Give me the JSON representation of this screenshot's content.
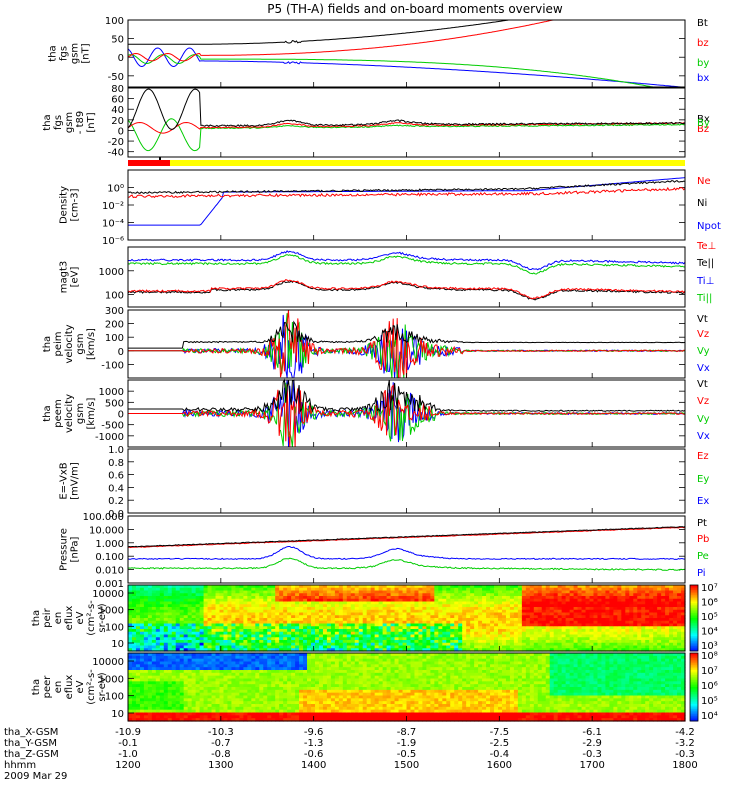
{
  "chart_data": {
    "type": "line",
    "title": "P5 (TH-A) fields and on-board moments overview",
    "panels": [
      {
        "id": "fgs",
        "ylabel": [
          "tha",
          "fgs",
          "gsm",
          "[nT]"
        ],
        "ylim": [
          -80,
          100
        ],
        "ticks": [
          "100",
          "50",
          "0",
          "-50"
        ],
        "tick_values": [
          100,
          50,
          0,
          -50
        ],
        "legend": [
          {
            "name": "Bt",
            "color": "#000000"
          },
          {
            "name": "bz",
            "color": "#ff0000"
          },
          {
            "name": "by",
            "color": "#00cc00"
          },
          {
            "name": "bx",
            "color": "#0000ff"
          }
        ]
      },
      {
        "id": "fgs-t89",
        "ylabel": [
          "tha",
          "fgs",
          "gsm",
          "- t89",
          "[nT]"
        ],
        "ylim": [
          -50,
          80
        ],
        "ticks": [
          "80",
          "60",
          "40",
          "20",
          "0",
          "-20",
          "-40"
        ],
        "tick_values": [
          80,
          60,
          40,
          20,
          0,
          -20,
          -40
        ],
        "legend": [
          {
            "name": "Bx",
            "color": "#000000"
          },
          {
            "name": "Bz",
            "color": "#ff0000"
          },
          {
            "name": "By",
            "color": "#00cc00"
          }
        ]
      },
      {
        "id": "density",
        "ylabel": [
          "Density",
          "[cm-3]"
        ],
        "ylim": [
          1e-06,
          100
        ],
        "scale": "log",
        "ticks": [
          "10⁰",
          "10⁻²",
          "10⁻⁴",
          "10⁻⁶"
        ],
        "tick_values": [
          1,
          0.01,
          0.0001,
          1e-06
        ],
        "legend": [
          {
            "name": "Ne",
            "color": "#ff0000"
          },
          {
            "name": "Ni",
            "color": "#000000"
          },
          {
            "name": "Npot",
            "color": "#0000ff"
          }
        ]
      },
      {
        "id": "temperature",
        "ylabel": [
          "magt3",
          "[eV]"
        ],
        "ylim": [
          30,
          10000
        ],
        "scale": "log",
        "ticks": [
          "1000",
          "100"
        ],
        "tick_values": [
          1000,
          100
        ],
        "legend": [
          {
            "name": "Te⊥",
            "color": "#ff0000"
          },
          {
            "name": "Te||",
            "color": "#000000"
          },
          {
            "name": "Ti⊥",
            "color": "#0000ff"
          },
          {
            "name": "Ti||",
            "color": "#00cc00"
          }
        ]
      },
      {
        "id": "peim",
        "ylabel": [
          "tha",
          "peim",
          "velocity",
          "gsm",
          "[km/s]"
        ],
        "ylim": [
          -200,
          300
        ],
        "ticks": [
          "300",
          "200",
          "100",
          "0",
          "-100"
        ],
        "tick_values": [
          300,
          200,
          100,
          0,
          -100
        ],
        "legend": [
          {
            "name": "Vt",
            "color": "#000000"
          },
          {
            "name": "Vz",
            "color": "#ff0000"
          },
          {
            "name": "Vy",
            "color": "#00cc00"
          },
          {
            "name": "Vx",
            "color": "#0000ff"
          }
        ]
      },
      {
        "id": "peem",
        "ylabel": [
          "tha",
          "peem",
          "velocity",
          "gsm",
          "[km/s]"
        ],
        "ylim": [
          -1500,
          1500
        ],
        "ticks": [
          "1000",
          "500",
          "0",
          "-500",
          "-1000"
        ],
        "tick_values": [
          1000,
          500,
          0,
          -500,
          -1000
        ],
        "legend": [
          {
            "name": "Vt",
            "color": "#000000"
          },
          {
            "name": "Vz",
            "color": "#ff0000"
          },
          {
            "name": "Vy",
            "color": "#00cc00"
          },
          {
            "name": "Vx",
            "color": "#0000ff"
          }
        ]
      },
      {
        "id": "efield",
        "ylabel": [
          "E=-VxB",
          "[mV/m]"
        ],
        "ylim": [
          0,
          1
        ],
        "ticks": [
          "1.0",
          "0.8",
          "0.6",
          "0.4",
          "0.2",
          "0.0"
        ],
        "tick_values": [
          1,
          0.8,
          0.6,
          0.4,
          0.2,
          0
        ],
        "legend": [
          {
            "name": "Ez",
            "color": "#ff0000"
          },
          {
            "name": "Ey",
            "color": "#00cc00"
          },
          {
            "name": "Ex",
            "color": "#0000ff"
          }
        ]
      },
      {
        "id": "pressure",
        "ylabel": [
          "Pressure",
          "[nPa]"
        ],
        "ylim": [
          0.001,
          100
        ],
        "scale": "log",
        "ticks": [
          "100.000",
          "10.000",
          "1.000",
          "0.100",
          "0.010",
          "0.001"
        ],
        "tick_values": [
          100,
          10,
          1,
          0.1,
          0.01,
          0.001
        ],
        "legend": [
          {
            "name": "Pt",
            "color": "#000000"
          },
          {
            "name": "Pb",
            "color": "#ff0000"
          },
          {
            "name": "Pe",
            "color": "#00cc00"
          },
          {
            "name": "Pi",
            "color": "#0000ff"
          }
        ]
      },
      {
        "id": "peir",
        "type": "heatmap",
        "ylabel": [
          "tha",
          "peir",
          "en",
          "eflux",
          "eV",
          "(cm²-s-",
          "sr-eV)"
        ],
        "ticks": [
          "10000",
          "1000",
          "100",
          "10"
        ],
        "tick_values": [
          10000,
          1000,
          100,
          10
        ],
        "colorbar": [
          "10⁷",
          "10⁶",
          "10⁵",
          "10⁴",
          "10³"
        ]
      },
      {
        "id": "peer",
        "type": "heatmap",
        "ylabel": [
          "tha",
          "peer",
          "en",
          "eflux",
          "eV",
          "(cm²-s-",
          "sr-eV)"
        ],
        "ticks": [
          "10000",
          "1000",
          "100",
          "10"
        ],
        "tick_values": [
          10000,
          1000,
          100,
          10
        ],
        "colorbar": [
          "10⁸",
          "10⁷",
          "10⁶",
          "10⁵",
          "10⁴"
        ]
      }
    ],
    "xaxis": {
      "rows": [
        {
          "label": "tha_X-GSM",
          "values": [
            "-10.9",
            "-10.3",
            "-9.6",
            "-8.7",
            "-7.5",
            "-6.1",
            "-4.2"
          ]
        },
        {
          "label": "tha_Y-GSM",
          "values": [
            "-0.1",
            "-0.7",
            "-1.3",
            "-1.9",
            "-2.5",
            "-2.9",
            "-3.2"
          ]
        },
        {
          "label": "tha_Z-GSM",
          "values": [
            "-1.0",
            "-0.8",
            "-0.6",
            "-0.5",
            "-0.4",
            "-0.3",
            "-0.3"
          ]
        },
        {
          "label": "hhmm",
          "values": [
            "1200",
            "1300",
            "1400",
            "1500",
            "1600",
            "1700",
            "1800"
          ]
        }
      ],
      "date": "2009 Mar 29"
    }
  },
  "colors": {
    "black": "#000000",
    "red": "#ff0000",
    "green": "#00cc00",
    "blue": "#0000ff",
    "yellow": "#ffff00"
  }
}
